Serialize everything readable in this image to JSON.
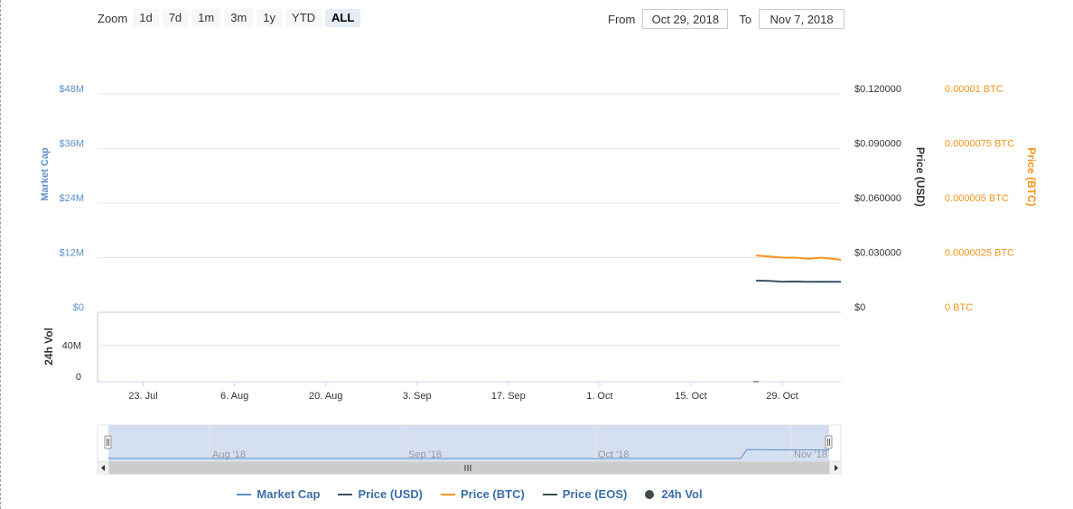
{
  "range_selector": {
    "zoom_label": "Zoom",
    "buttons": [
      {
        "label": "1d",
        "active": false
      },
      {
        "label": "7d",
        "active": false
      },
      {
        "label": "1m",
        "active": false
      },
      {
        "label": "3m",
        "active": false
      },
      {
        "label": "1y",
        "active": false
      },
      {
        "label": "YTD",
        "active": false
      },
      {
        "label": "ALL",
        "active": true
      }
    ],
    "from_label": "From",
    "from_value": "Oct 29, 2018",
    "to_label": "To",
    "to_value": "Nov 7, 2018"
  },
  "colors": {
    "market_cap": "#5b8fc7",
    "price_usd": "#3b5566",
    "price_btc": "#f7931a",
    "price_eos": "#3f4d4a",
    "vol": "#3f4d4a",
    "grid": "#e6e6e6",
    "navigator_fill": "#cdd9ee",
    "legend_text": "#3c6ea8"
  },
  "chart_data": {
    "type": "line",
    "x_tick_labels": [
      "23. Jul",
      "6. Aug",
      "20. Aug",
      "3. Sep",
      "17. Sep",
      "1. Oct",
      "15. Oct",
      "29. Oct"
    ],
    "x_range": [
      "2018-07-16",
      "2018-11-07"
    ],
    "left_axis": {
      "label": "Market Cap",
      "tick_labels": [
        "$0",
        "$12M",
        "$24M",
        "$36M",
        "$48M"
      ],
      "ylim": [
        0,
        48000000
      ]
    },
    "right_axis_usd": {
      "label": "Price (USD)",
      "tick_labels": [
        "$0",
        "$0.030000",
        "$0.060000",
        "$0.090000",
        "$0.120000"
      ],
      "ylim": [
        0,
        0.12
      ]
    },
    "right_axis_btc": {
      "label": "Price (BTC)",
      "tick_labels": [
        "0 BTC",
        "0.0000025 BTC",
        "0.000005 BTC",
        "0.0000075 BTC",
        "0.00001 BTC"
      ],
      "ylim": [
        0,
        1e-05
      ]
    },
    "vol_axis": {
      "label": "24h Vol",
      "tick_labels": [
        "0",
        "40M"
      ],
      "ylim": [
        0,
        76000000
      ]
    },
    "series": [
      {
        "name": "Price (BTC)",
        "axis": "btc",
        "x": [
          "2018-10-25",
          "2018-10-27",
          "2018-10-29",
          "2018-10-31",
          "2018-11-02",
          "2018-11-04",
          "2018-11-07"
        ],
        "y": [
          2.6e-06,
          2.55e-06,
          2.5e-06,
          2.5e-06,
          2.45e-06,
          2.5e-06,
          2.4e-06
        ]
      },
      {
        "name": "Price (USD)",
        "axis": "usd",
        "x": [
          "2018-10-25",
          "2018-10-27",
          "2018-10-29",
          "2018-10-31",
          "2018-11-02",
          "2018-11-04",
          "2018-11-07"
        ],
        "y": [
          0.0174,
          0.0172,
          0.0168,
          0.0169,
          0.0167,
          0.0168,
          0.0167
        ]
      },
      {
        "name": "24h Vol",
        "axis": "vol",
        "x": [
          "2018-10-25"
        ],
        "y": [
          600000
        ]
      }
    ],
    "legend": [
      "Market Cap",
      "Price (USD)",
      "Price (BTC)",
      "Price (EOS)",
      "24h Vol"
    ],
    "legend_position": "bottom",
    "grid": true,
    "navigator": {
      "tick_labels": [
        "Aug '18",
        "Sep '18",
        "Oct '18",
        "Nov '18"
      ],
      "selected_range": [
        "2018-07-16",
        "2018-11-07"
      ]
    }
  }
}
